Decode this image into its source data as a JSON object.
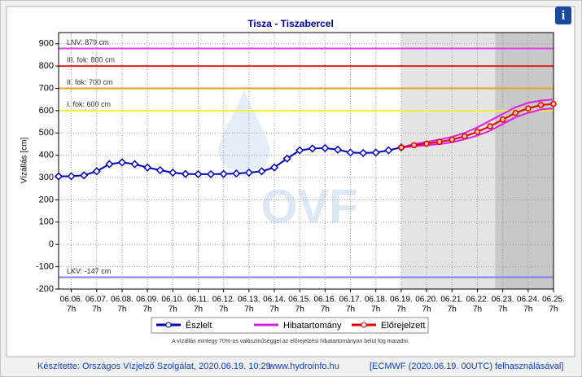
{
  "chart_data": {
    "type": "line",
    "title": "Tisza - Tiszabercel",
    "y_label": "Vízállás [cm]",
    "watermark": "OVF",
    "info_icon": "i",
    "ylim": [
      -200,
      950
    ],
    "yticks": [
      -200,
      -100,
      0,
      100,
      200,
      300,
      400,
      500,
      600,
      700,
      800,
      900
    ],
    "xlim": [
      -0.5,
      19
    ],
    "xticks": [
      {
        "value": 0,
        "label": "06.06."
      },
      {
        "value": 1,
        "label": "06.07."
      },
      {
        "value": 2,
        "label": "06.08."
      },
      {
        "value": 3,
        "label": "06.09."
      },
      {
        "value": 4,
        "label": "06.10."
      },
      {
        "value": 5,
        "label": "06.11."
      },
      {
        "value": 6,
        "label": "06.12."
      },
      {
        "value": 7,
        "label": "06.13."
      },
      {
        "value": 8,
        "label": "06.14."
      },
      {
        "value": 9,
        "label": "06.15."
      },
      {
        "value": 10,
        "label": "06.16."
      },
      {
        "value": 11,
        "label": "06.17."
      },
      {
        "value": 12,
        "label": "06.18."
      },
      {
        "value": 13,
        "label": "06.19."
      },
      {
        "value": 14,
        "label": "06.20."
      },
      {
        "value": 15,
        "label": "06.21."
      },
      {
        "value": 16,
        "label": "06.22."
      },
      {
        "value": 17,
        "label": "06.23."
      },
      {
        "value": 18,
        "label": "06.24."
      },
      {
        "value": 19,
        "label": "06.25."
      }
    ],
    "xtick_hours": [
      "7h",
      "7h",
      "7h",
      "7h",
      "7h",
      "7h",
      "7h",
      "7h",
      "7h",
      "7h",
      "7h",
      "7h",
      "7h",
      "7h",
      "7h",
      "7h",
      "7h",
      "7h",
      "7h",
      "7h"
    ],
    "grid": true,
    "shaded_regions": [
      {
        "from": 13,
        "to": 19,
        "color": "#e4e4e4"
      },
      {
        "from": 16.7,
        "to": 19,
        "color": "#c8c8c8"
      }
    ],
    "thresholds": [
      {
        "value": 879,
        "label": "LNV: 879 cm",
        "color": "#e040e0"
      },
      {
        "value": 800,
        "label": "III. fok: 800 cm",
        "color": "#e02020"
      },
      {
        "value": 700,
        "label": "II. fok: 700 cm",
        "color": "#f0a020"
      },
      {
        "value": 600,
        "label": "I. fok: 600 cm",
        "color": "#f0f040"
      },
      {
        "value": -147,
        "label": "LKV: -147 cm",
        "color": "#8080ff"
      }
    ],
    "series": [
      {
        "name": "Észlelt",
        "color": "#0000c0",
        "marker": "diamond",
        "x": [
          -0.5,
          0,
          0.5,
          1,
          1.5,
          2,
          2.5,
          3,
          3.5,
          4,
          4.5,
          5,
          5.5,
          6,
          6.5,
          7,
          7.5,
          8,
          8.5,
          9,
          9.5,
          10,
          10.5,
          11,
          11.5,
          12,
          12.5,
          13
        ],
        "values": [
          305,
          306,
          310,
          328,
          360,
          368,
          360,
          345,
          333,
          322,
          316,
          315,
          315,
          316,
          318,
          322,
          328,
          345,
          385,
          422,
          430,
          432,
          425,
          412,
          410,
          412,
          422,
          435
        ]
      },
      {
        "name": "Hibatartomány",
        "color": "#e020e0",
        "x": [
          13,
          13.5,
          14,
          14.5,
          15,
          15.5,
          16,
          16.5,
          17,
          17.5,
          18,
          18.5,
          19
        ],
        "upper": [
          435,
          450,
          460,
          470,
          482,
          500,
          525,
          555,
          585,
          615,
          635,
          645,
          650
        ],
        "lower": [
          435,
          440,
          445,
          450,
          458,
          472,
          488,
          510,
          540,
          570,
          590,
          605,
          610
        ]
      },
      {
        "name": "Előrejelzett",
        "color": "#e00000",
        "marker": "circle",
        "x": [
          13,
          13.5,
          14,
          14.5,
          15,
          15.5,
          16,
          16.5,
          17,
          17.5,
          18,
          18.5,
          19
        ],
        "values": [
          435,
          445,
          452,
          460,
          470,
          485,
          505,
          530,
          560,
          590,
          610,
          625,
          630
        ]
      }
    ],
    "note": "A vízállás mintegy 70%-os valószínűséggel az előrejelzési hibatartományon belül fog maradni.",
    "footer": {
      "author": "Készítette: Országos Vízjelző Szolgálat, 2020.06.19. 10:29",
      "site": "www.hydroinfo.hu",
      "source": "[ECMWF (2020.06.19. 00UTC) felhasználásával]"
    }
  }
}
